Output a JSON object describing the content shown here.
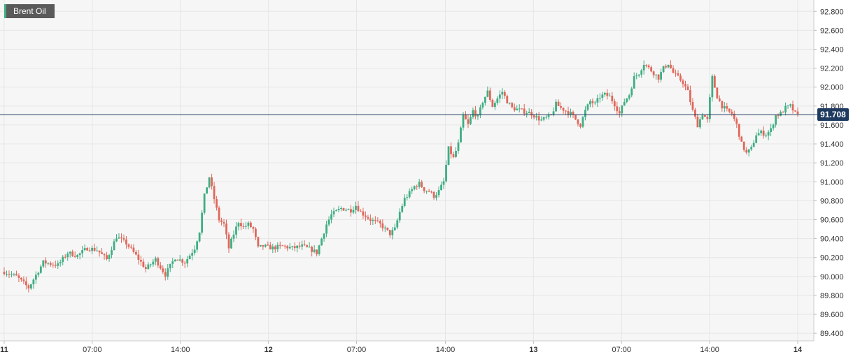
{
  "chart_data": {
    "type": "candlestick",
    "title": "Brent Oil",
    "current_price": 91.708,
    "current_price_label": "91.708",
    "ylim": [
      89.32,
      92.92
    ],
    "y_ticks": [
      "92.800",
      "92.600",
      "92.400",
      "92.200",
      "92.000",
      "91.800",
      "91.600",
      "91.400",
      "91.200",
      "91.000",
      "90.800",
      "90.600",
      "90.400",
      "90.200",
      "90.000",
      "89.800",
      "89.600",
      "89.400"
    ],
    "x_ticks": [
      {
        "label": "11",
        "bold": true,
        "pos": 0
      },
      {
        "label": "07:00",
        "bold": false,
        "pos": 0.111
      },
      {
        "label": "14:00",
        "bold": false,
        "pos": 0.222
      },
      {
        "label": "12",
        "bold": true,
        "pos": 0.333
      },
      {
        "label": "07:00",
        "bold": false,
        "pos": 0.444
      },
      {
        "label": "14:00",
        "bold": false,
        "pos": 0.556
      },
      {
        "label": "13",
        "bold": true,
        "pos": 0.667
      },
      {
        "label": "07:00",
        "bold": false,
        "pos": 0.778
      },
      {
        "label": "14:00",
        "bold": false,
        "pos": 0.889
      },
      {
        "label": "14",
        "bold": true,
        "pos": 1
      }
    ],
    "grid": true,
    "colors": {
      "up": "#3fae83",
      "down": "#e0675a",
      "price_line": "#1e3a5f",
      "badge": "#5a5a5a",
      "grid": "#e6e6e6",
      "plot_bg": "#f6f6f6"
    },
    "anchors": [
      [
        0,
        90.05
      ],
      [
        5,
        90.0
      ],
      [
        10,
        89.88
      ],
      [
        16,
        90.15
      ],
      [
        22,
        90.12
      ],
      [
        26,
        90.25
      ],
      [
        30,
        90.22
      ],
      [
        34,
        90.3
      ],
      [
        38,
        90.28
      ],
      [
        42,
        90.18
      ],
      [
        46,
        90.42
      ],
      [
        50,
        90.35
      ],
      [
        54,
        90.22
      ],
      [
        58,
        90.08
      ],
      [
        62,
        90.18
      ],
      [
        66,
        90.02
      ],
      [
        70,
        90.2
      ],
      [
        74,
        90.15
      ],
      [
        78,
        90.3
      ],
      [
        80,
        90.48
      ],
      [
        82,
        90.85
      ],
      [
        84,
        91.05
      ],
      [
        86,
        90.82
      ],
      [
        88,
        90.6
      ],
      [
        90,
        90.55
      ],
      [
        92,
        90.3
      ],
      [
        94,
        90.45
      ],
      [
        96,
        90.58
      ],
      [
        98,
        90.52
      ],
      [
        100,
        90.55
      ],
      [
        102,
        90.5
      ],
      [
        104,
        90.3
      ],
      [
        106,
        90.32
      ],
      [
        110,
        90.3
      ],
      [
        114,
        90.32
      ],
      [
        118,
        90.3
      ],
      [
        122,
        90.32
      ],
      [
        126,
        90.28
      ],
      [
        128,
        90.25
      ],
      [
        130,
        90.4
      ],
      [
        132,
        90.55
      ],
      [
        134,
        90.65
      ],
      [
        138,
        90.72
      ],
      [
        142,
        90.7
      ],
      [
        144,
        90.75
      ],
      [
        146,
        90.68
      ],
      [
        150,
        90.6
      ],
      [
        154,
        90.55
      ],
      [
        158,
        90.45
      ],
      [
        160,
        90.5
      ],
      [
        162,
        90.68
      ],
      [
        164,
        90.82
      ],
      [
        166,
        90.88
      ],
      [
        168,
        90.95
      ],
      [
        170,
        90.98
      ],
      [
        172,
        90.92
      ],
      [
        174,
        90.9
      ],
      [
        176,
        90.85
      ],
      [
        178,
        90.9
      ],
      [
        180,
        91.0
      ],
      [
        182,
        91.35
      ],
      [
        184,
        91.25
      ],
      [
        186,
        91.4
      ],
      [
        188,
        91.7
      ],
      [
        190,
        91.6
      ],
      [
        192,
        91.75
      ],
      [
        194,
        91.68
      ],
      [
        196,
        91.85
      ],
      [
        198,
        91.95
      ],
      [
        200,
        91.8
      ],
      [
        202,
        91.88
      ],
      [
        204,
        91.95
      ],
      [
        206,
        91.85
      ],
      [
        208,
        91.78
      ],
      [
        212,
        91.75
      ],
      [
        216,
        91.72
      ],
      [
        218,
        91.68
      ],
      [
        220,
        91.65
      ],
      [
        224,
        91.7
      ],
      [
        226,
        91.82
      ],
      [
        228,
        91.78
      ],
      [
        230,
        91.75
      ],
      [
        232,
        91.72
      ],
      [
        236,
        91.6
      ],
      [
        238,
        91.75
      ],
      [
        240,
        91.85
      ],
      [
        242,
        91.82
      ],
      [
        244,
        91.9
      ],
      [
        246,
        91.92
      ],
      [
        248,
        91.9
      ],
      [
        250,
        91.82
      ],
      [
        252,
        91.72
      ],
      [
        254,
        91.85
      ],
      [
        256,
        91.92
      ],
      [
        258,
        92.1
      ],
      [
        260,
        92.15
      ],
      [
        262,
        92.25
      ],
      [
        264,
        92.2
      ],
      [
        266,
        92.15
      ],
      [
        268,
        92.1
      ],
      [
        270,
        92.2
      ],
      [
        272,
        92.25
      ],
      [
        274,
        92.15
      ],
      [
        276,
        92.1
      ],
      [
        278,
        92.05
      ],
      [
        280,
        91.95
      ],
      [
        282,
        91.75
      ],
      [
        284,
        91.6
      ],
      [
        286,
        91.72
      ],
      [
        288,
        91.65
      ],
      [
        290,
        92.1
      ],
      [
        292,
        91.9
      ],
      [
        294,
        91.8
      ],
      [
        296,
        91.75
      ],
      [
        298,
        91.72
      ],
      [
        300,
        91.6
      ],
      [
        302,
        91.4
      ],
      [
        304,
        91.3
      ],
      [
        306,
        91.35
      ],
      [
        308,
        91.5
      ],
      [
        310,
        91.52
      ],
      [
        312,
        91.5
      ],
      [
        314,
        91.55
      ],
      [
        316,
        91.7
      ],
      [
        318,
        91.72
      ],
      [
        320,
        91.78
      ],
      [
        322,
        91.8
      ],
      [
        324,
        91.72
      ],
      [
        325,
        91.7
      ]
    ]
  }
}
